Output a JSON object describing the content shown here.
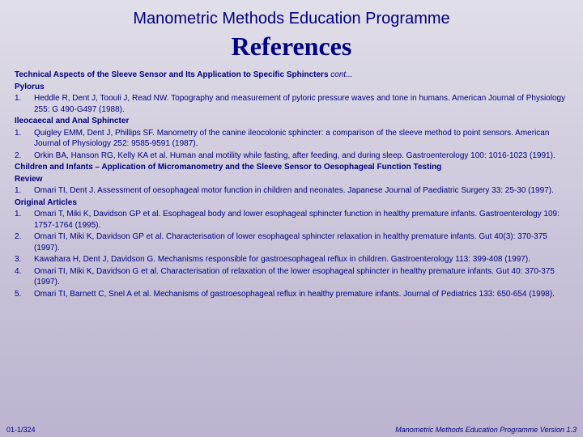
{
  "header": "Manometric Methods Education Programme",
  "title": "References",
  "main_section": {
    "text": "Technical Aspects of the Sleeve Sensor and Its Application to Specific Sphincters ",
    "cont": "cont..."
  },
  "sections": [
    {
      "heading": "Pylorus",
      "items": [
        {
          "n": "1.",
          "t": "Heddle R, Dent J, Toouli J, Read NW. Topography and measurement of pyloric pressure waves and tone in humans. American Journal of Physiology 255: G 490-G497 (1988)."
        }
      ]
    },
    {
      "heading": "Ileocaecal and Anal Sphincter",
      "items": [
        {
          "n": "1.",
          "t": "Quigley EMM, Dent J, Phillips SF. Manometry of the canine ileocolonic sphincter: a comparison of the sleeve method to point sensors. American Journal of Physiology 252: 9585-9591 (1987)."
        },
        {
          "n": "2.",
          "t": "Orkin BA, Hanson RG, Kelly KA et al. Human anal motility while fasting, after feeding, and during sleep. Gastroenterology 100: 1016-1023 (1991)."
        }
      ]
    },
    {
      "heading": "Children and Infants – Application of Micromanometry and the Sleeve Sensor to Oesophageal Function Testing",
      "items": []
    },
    {
      "heading": "Review",
      "items": [
        {
          "n": "1.",
          "t": "Omari TI, Dent J.  Assessment of oesophageal motor function in children and neonates.  Japanese Journal of Paediatric Surgery 33: 25-30 (1997)."
        }
      ]
    },
    {
      "heading": "Original Articles",
      "items": [
        {
          "n": "1.",
          "t": "Omari T, Miki K, Davidson GP et al.  Esophageal body and lower esophageal sphincter function in healthy premature infants.  Gastroenterology 109: 1757-1764 (1995)."
        },
        {
          "n": "2.",
          "t": "Omari TI, Miki K, Davidson GP et al. Characterisation of lower esophageal sphincter relaxation in healthy premature infants. Gut 40(3): 370-375 (1997)."
        },
        {
          "n": "3.",
          "t": "Kawahara H, Dent J, Davidson G. Mechanisms responsible for gastroesophageal reflux in children. Gastroenterology 113: 399-408 (1997)."
        },
        {
          "n": "4.",
          "t": "Omari TI, Miki K, Davidson G et al. Characterisation of relaxation of the lower esophageal sphincter in healthy premature infants. Gut 40: 370-375 (1997)."
        },
        {
          "n": "5.",
          "t": "Omari TI, Barnett C, Snel A et al. Mechanisms of gastroesophageal reflux in healthy premature infants. Journal of Pediatrics 133: 650-654 (1998)."
        }
      ]
    }
  ],
  "footer": {
    "left": "01-1/324",
    "right": "Manometric Methods Education Programme Version 1.3"
  }
}
